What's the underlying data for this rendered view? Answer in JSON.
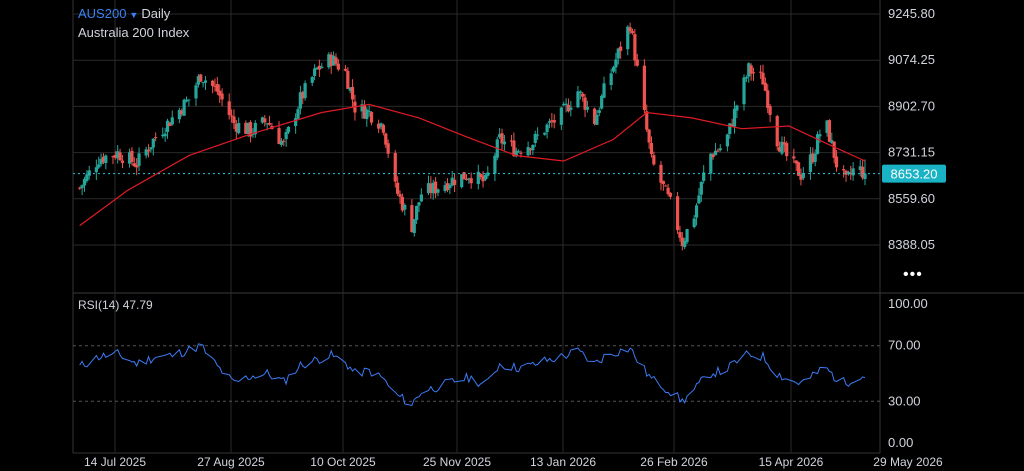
{
  "header": {
    "symbol": "AUS200",
    "interval": "Daily",
    "name": "Australia 200 Index"
  },
  "price_tag": "8653.20",
  "rsi": {
    "label": "RSI(14)",
    "value": "47.79"
  },
  "more_icon": "more-dots-icon",
  "colors": {
    "up": "#26a69a",
    "down": "#ef5350",
    "ma": "#e01b24",
    "rsi": "#3d7bf7",
    "price_line": "#27c4d8",
    "grid": "#2a2a2a",
    "text": "#d1d4dc"
  },
  "chart_data": [
    {
      "type": "candlestick",
      "title": "AUS200 Daily",
      "ylim": [
        8330,
        9300
      ],
      "yticks": [
        9245.8,
        9074.25,
        8902.7,
        8731.15,
        8559.6,
        8388.05
      ],
      "ytick_labels": [
        "9245.80",
        "9074.25",
        "8902.70",
        "8731.15",
        "8559.60",
        "8388.05"
      ],
      "xticks": [
        "14 Jul 2025",
        "27 Aug 2025",
        "10 Oct 2025",
        "25 Nov 2025",
        "13 Jan 2026",
        "26 Feb 2026",
        "15 Apr 2026",
        "29 May 2026"
      ],
      "last_price": 8653.2,
      "overlay": "moving average (red line)",
      "close_path": [
        [
          "2025-06-30",
          8600
        ],
        [
          "2025-07-08",
          8710
        ],
        [
          "2025-07-16",
          8730
        ],
        [
          "2025-07-24",
          8690
        ],
        [
          "2025-08-01",
          8790
        ],
        [
          "2025-08-08",
          8860
        ],
        [
          "2025-08-15",
          8930
        ],
        [
          "2025-08-20",
          9020
        ],
        [
          "2025-08-27",
          8960
        ],
        [
          "2025-09-03",
          8840
        ],
        [
          "2025-09-10",
          8810
        ],
        [
          "2025-09-17",
          8850
        ],
        [
          "2025-09-24",
          8760
        ],
        [
          "2025-10-01",
          8930
        ],
        [
          "2025-10-08",
          9040
        ],
        [
          "2025-10-14",
          9080
        ],
        [
          "2025-10-20",
          9030
        ],
        [
          "2025-10-24",
          8900
        ],
        [
          "2025-10-30",
          8880
        ],
        [
          "2025-11-05",
          8830
        ],
        [
          "2025-11-10",
          8600
        ],
        [
          "2025-11-17",
          8460
        ],
        [
          "2025-11-21",
          8580
        ],
        [
          "2025-11-27",
          8600
        ],
        [
          "2025-12-04",
          8630
        ],
        [
          "2025-12-11",
          8650
        ],
        [
          "2025-12-18",
          8620
        ],
        [
          "2025-12-24",
          8780
        ],
        [
          "2025-12-31",
          8740
        ],
        [
          "2026-01-07",
          8770
        ],
        [
          "2026-01-12",
          8820
        ],
        [
          "2026-01-19",
          8870
        ],
        [
          "2026-01-26",
          8960
        ],
        [
          "2026-02-02",
          8850
        ],
        [
          "2026-02-06",
          8960
        ],
        [
          "2026-02-12",
          9100
        ],
        [
          "2026-02-17",
          9210
        ],
        [
          "2026-02-21",
          8980
        ],
        [
          "2026-02-26",
          8700
        ],
        [
          "2026-03-02",
          8620
        ],
        [
          "2026-03-06",
          8540
        ],
        [
          "2026-03-11",
          8400
        ],
        [
          "2026-03-16",
          8500
        ],
        [
          "2026-03-22",
          8720
        ],
        [
          "2026-03-29",
          8760
        ],
        [
          "2026-04-03",
          8910
        ],
        [
          "2026-04-08",
          9040
        ],
        [
          "2026-04-14",
          9000
        ],
        [
          "2026-04-20",
          8780
        ],
        [
          "2026-04-25",
          8700
        ],
        [
          "2026-04-30",
          8650
        ],
        [
          "2026-05-05",
          8720
        ],
        [
          "2026-05-10",
          8860
        ],
        [
          "2026-05-15",
          8690
        ],
        [
          "2026-05-19",
          8620
        ],
        [
          "2026-05-23",
          8680
        ],
        [
          "2026-05-27",
          8653
        ]
      ],
      "ma_path": [
        [
          "2025-06-30",
          8460
        ],
        [
          "2025-07-20",
          8590
        ],
        [
          "2025-08-15",
          8720
        ],
        [
          "2025-09-10",
          8800
        ],
        [
          "2025-10-10",
          8880
        ],
        [
          "2025-10-30",
          8910
        ],
        [
          "2025-11-20",
          8860
        ],
        [
          "2025-12-10",
          8790
        ],
        [
          "2025-12-31",
          8720
        ],
        [
          "2026-01-20",
          8700
        ],
        [
          "2026-02-10",
          8780
        ],
        [
          "2026-02-24",
          8880
        ],
        [
          "2026-03-15",
          8860
        ],
        [
          "2026-04-05",
          8820
        ],
        [
          "2026-04-25",
          8830
        ],
        [
          "2026-05-12",
          8760
        ],
        [
          "2026-05-27",
          8700
        ]
      ]
    },
    {
      "type": "line",
      "title": "RSI(14) 47.79",
      "ylim": [
        0,
        100
      ],
      "yticks": [
        100,
        70,
        30,
        0
      ],
      "ytick_labels": [
        "100.00",
        "70.00",
        "30.00",
        "0.00"
      ],
      "bands": [
        70,
        30
      ],
      "last_value": 47.79,
      "path": [
        [
          "2025-06-30",
          55
        ],
        [
          "2025-07-08",
          62
        ],
        [
          "2025-07-16",
          64
        ],
        [
          "2025-07-24",
          57
        ],
        [
          "2025-08-01",
          62
        ],
        [
          "2025-08-08",
          63
        ],
        [
          "2025-08-15",
          67
        ],
        [
          "2025-08-20",
          70
        ],
        [
          "2025-08-27",
          55
        ],
        [
          "2025-09-03",
          43
        ],
        [
          "2025-09-10",
          48
        ],
        [
          "2025-09-17",
          50
        ],
        [
          "2025-09-24",
          44
        ],
        [
          "2025-10-01",
          56
        ],
        [
          "2025-10-08",
          60
        ],
        [
          "2025-10-14",
          63
        ],
        [
          "2025-10-20",
          58
        ],
        [
          "2025-10-24",
          50
        ],
        [
          "2025-10-30",
          52
        ],
        [
          "2025-11-05",
          46
        ],
        [
          "2025-11-10",
          35
        ],
        [
          "2025-11-17",
          28
        ],
        [
          "2025-11-21",
          37
        ],
        [
          "2025-11-27",
          40
        ],
        [
          "2025-12-04",
          44
        ],
        [
          "2025-12-11",
          47
        ],
        [
          "2025-12-18",
          42
        ],
        [
          "2025-12-24",
          57
        ],
        [
          "2025-12-31",
          54
        ],
        [
          "2026-01-07",
          56
        ],
        [
          "2026-01-12",
          59
        ],
        [
          "2026-01-19",
          62
        ],
        [
          "2026-01-26",
          66
        ],
        [
          "2026-02-02",
          57
        ],
        [
          "2026-02-06",
          62
        ],
        [
          "2026-02-12",
          66
        ],
        [
          "2026-02-17",
          68
        ],
        [
          "2026-02-21",
          57
        ],
        [
          "2026-02-26",
          46
        ],
        [
          "2026-03-02",
          42
        ],
        [
          "2026-03-06",
          37
        ],
        [
          "2026-03-11",
          30
        ],
        [
          "2026-03-16",
          38
        ],
        [
          "2026-03-22",
          50
        ],
        [
          "2026-03-29",
          52
        ],
        [
          "2026-04-03",
          59
        ],
        [
          "2026-04-08",
          64
        ],
        [
          "2026-04-14",
          62
        ],
        [
          "2026-04-20",
          50
        ],
        [
          "2026-04-25",
          45
        ],
        [
          "2026-04-30",
          43
        ],
        [
          "2026-05-05",
          48
        ],
        [
          "2026-05-10",
          55
        ],
        [
          "2026-05-15",
          46
        ],
        [
          "2026-05-19",
          43
        ],
        [
          "2026-05-23",
          48
        ],
        [
          "2026-05-27",
          47.79
        ]
      ]
    }
  ]
}
